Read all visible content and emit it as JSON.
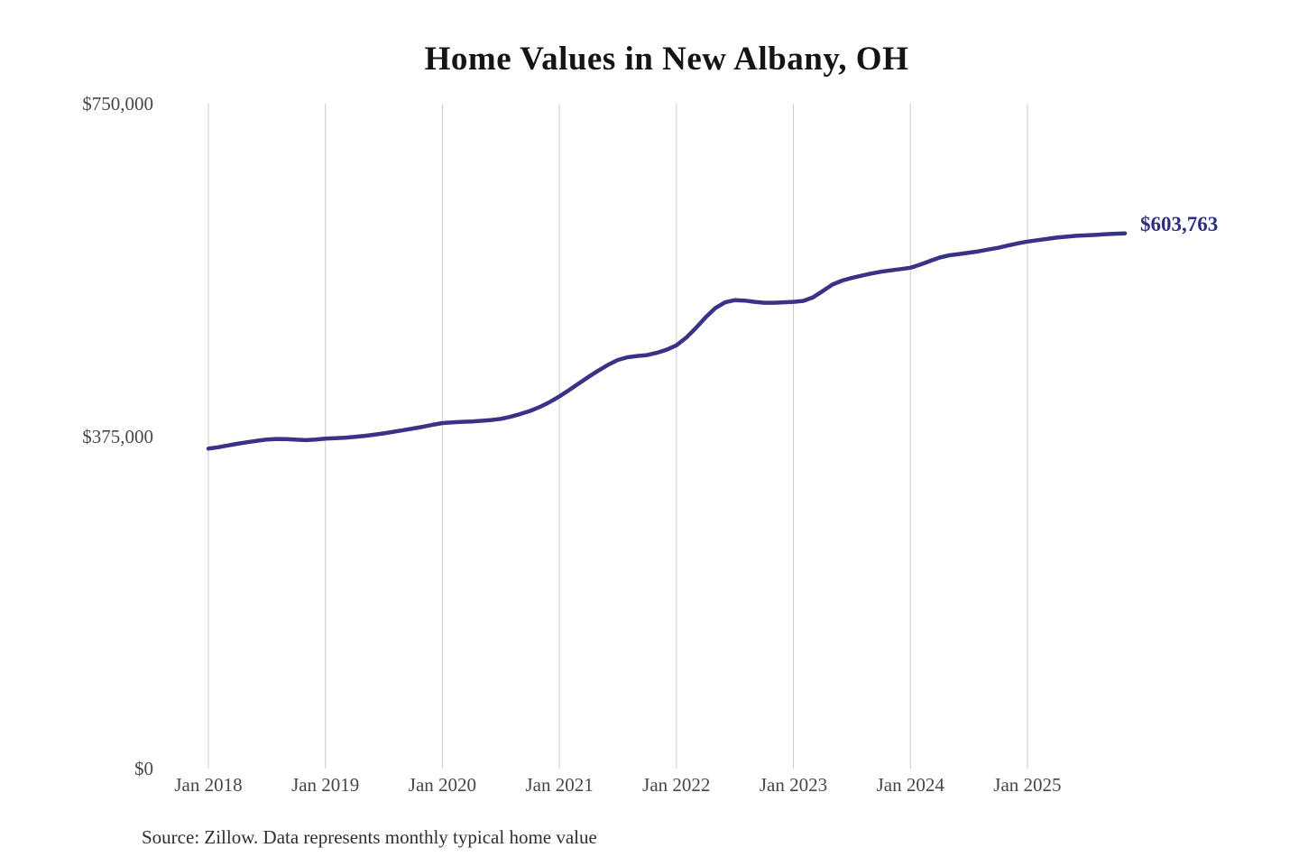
{
  "chart_data": {
    "type": "line",
    "title": "Home Values in New Albany, OH",
    "footnote": "Source: Zillow. Data represents monthly typical home value",
    "x_tick_labels": [
      "Jan 2018",
      "Jan 2019",
      "Jan 2020",
      "Jan 2021",
      "Jan 2022",
      "Jan 2023",
      "Jan 2024",
      "Jan 2025"
    ],
    "y_tick_labels": [
      "$0",
      "$375,000",
      "$750,000"
    ],
    "y_ticks": [
      0,
      375000,
      750000
    ],
    "ylim": [
      0,
      750000
    ],
    "x_start": "2018-01",
    "x_end": "2025-11",
    "frequency": "monthly",
    "grid": "vertical-only",
    "legend": "none",
    "colors": {
      "gridline": "#cccccc",
      "axis_text": "#474747",
      "title_text": "#141414",
      "source_text": "#2e2e2e"
    },
    "end_annotation": {
      "text": "$603,763",
      "value": 603763,
      "color": "#312e81"
    },
    "series": [
      {
        "name": "Typical home value",
        "color": "#3a3286",
        "values": [
          361000,
          362500,
          364500,
          366500,
          368200,
          369800,
          371200,
          371800,
          371600,
          371000,
          370500,
          371200,
          372300,
          372800,
          373300,
          374200,
          375300,
          376600,
          378200,
          380000,
          381800,
          383600,
          385600,
          387800,
          389800,
          390600,
          391200,
          391600,
          392300,
          393200,
          394500,
          397000,
          400000,
          403500,
          408000,
          413500,
          419800,
          427000,
          434500,
          442000,
          449000,
          455500,
          461000,
          464000,
          465500,
          466500,
          469000,
          472500,
          477500,
          486000,
          497000,
          509000,
          519500,
          526000,
          528500,
          528000,
          526500,
          525500,
          525500,
          526000,
          526500,
          527500,
          531500,
          538500,
          546000,
          550500,
          553500,
          556000,
          558500,
          560500,
          562000,
          563500,
          565000,
          568500,
          572500,
          576500,
          579000,
          580500,
          582000,
          583500,
          585500,
          587500,
          590000,
          592500,
          594500,
          596000,
          597500,
          599000,
          600000,
          601000,
          601500,
          602000,
          602800,
          603400,
          603763
        ]
      }
    ]
  }
}
